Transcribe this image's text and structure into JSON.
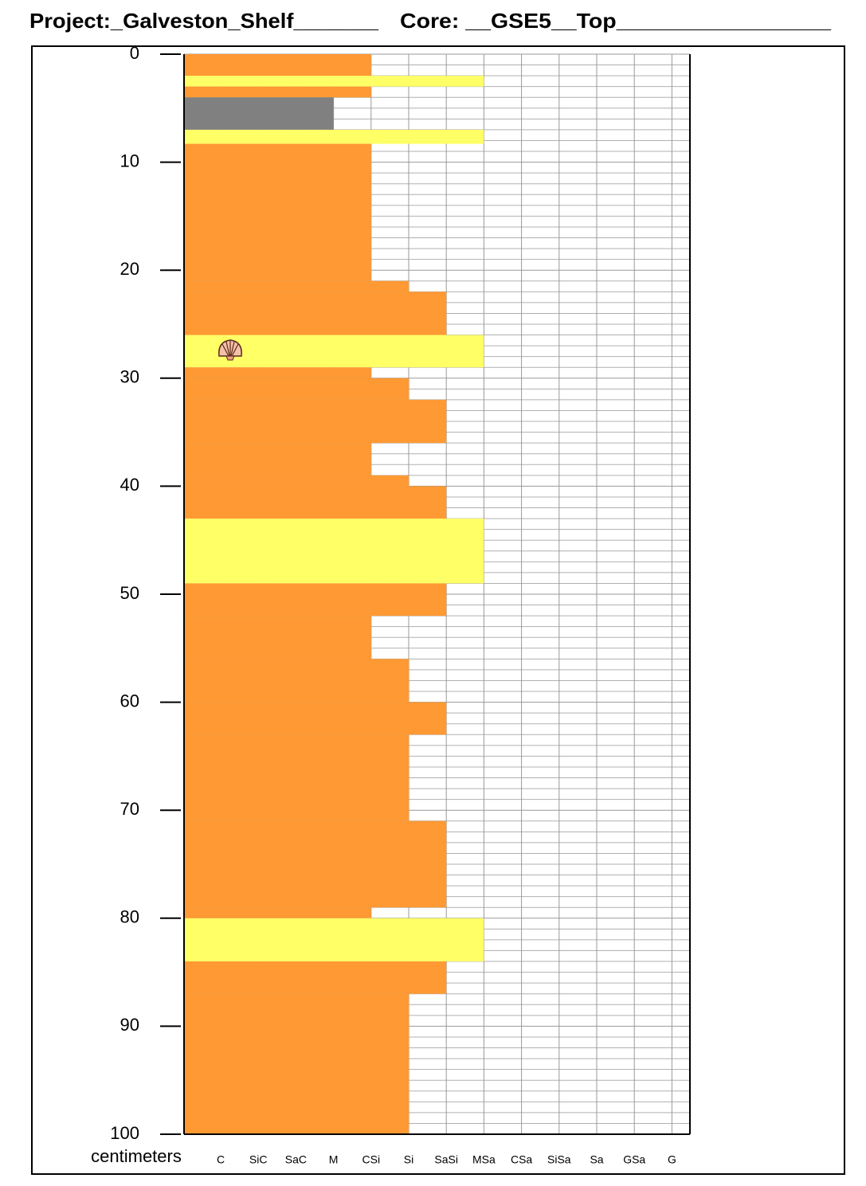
{
  "chart_data": {
    "type": "core-log",
    "title": "Project:_Galveston_Shelf_______",
    "subtitle": "Core: __GSE5__Top_________________",
    "y_label": "centimeters",
    "ylim": [
      0,
      100
    ],
    "yticks": [
      0,
      10,
      20,
      30,
      40,
      50,
      60,
      70,
      80,
      90,
      100
    ],
    "y_inverted": true,
    "grid": true,
    "categories": [
      "C",
      "SiC",
      "SaC",
      "M",
      "CSi",
      "Si",
      "SaSi",
      "MSa",
      "CSa",
      "SiSa",
      "Sa",
      "GSa",
      "G"
    ],
    "layers": [
      {
        "top": 0,
        "bottom": 2,
        "grain": "CSi",
        "color": "#ff9933"
      },
      {
        "top": 2,
        "bottom": 3,
        "grain": "MSa",
        "color": "#ffff66"
      },
      {
        "top": 3,
        "bottom": 4,
        "grain": "CSi",
        "color": "#ff9933"
      },
      {
        "top": 4,
        "bottom": 7,
        "grain": "M",
        "color": "#808080"
      },
      {
        "top": 7,
        "bottom": 8.3,
        "grain": "MSa",
        "color": "#ffff66"
      },
      {
        "top": 8.3,
        "bottom": 21,
        "grain": "CSi",
        "color": "#ff9933"
      },
      {
        "top": 21,
        "bottom": 22,
        "grain": "Si",
        "color": "#ff9933"
      },
      {
        "top": 22,
        "bottom": 26,
        "grain": "SaSi",
        "color": "#ff9933"
      },
      {
        "top": 26,
        "bottom": 29,
        "grain": "MSa",
        "color": "#ffff66"
      },
      {
        "top": 29,
        "bottom": 30,
        "grain": "CSi",
        "color": "#ff9933"
      },
      {
        "top": 30,
        "bottom": 32,
        "grain": "Si",
        "color": "#ff9933"
      },
      {
        "top": 32,
        "bottom": 36,
        "grain": "SaSi",
        "color": "#ff9933"
      },
      {
        "top": 36,
        "bottom": 39,
        "grain": "CSi",
        "color": "#ff9933"
      },
      {
        "top": 39,
        "bottom": 40,
        "grain": "Si",
        "color": "#ff9933"
      },
      {
        "top": 40,
        "bottom": 43,
        "grain": "SaSi",
        "color": "#ff9933"
      },
      {
        "top": 43,
        "bottom": 49,
        "grain": "MSa",
        "color": "#ffff66"
      },
      {
        "top": 49,
        "bottom": 52,
        "grain": "SaSi",
        "color": "#ff9933"
      },
      {
        "top": 52,
        "bottom": 56,
        "grain": "CSi",
        "color": "#ff9933"
      },
      {
        "top": 56,
        "bottom": 60,
        "grain": "Si",
        "color": "#ff9933"
      },
      {
        "top": 60,
        "bottom": 63,
        "grain": "SaSi",
        "color": "#ff9933"
      },
      {
        "top": 63,
        "bottom": 71,
        "grain": "Si",
        "color": "#ff9933"
      },
      {
        "top": 71,
        "bottom": 79,
        "grain": "SaSi",
        "color": "#ff9933"
      },
      {
        "top": 79,
        "bottom": 80,
        "grain": "CSi",
        "color": "#ff9933"
      },
      {
        "top": 80,
        "bottom": 84,
        "grain": "MSa",
        "color": "#ffff66"
      },
      {
        "top": 84,
        "bottom": 87,
        "grain": "SaSi",
        "color": "#ff9933"
      },
      {
        "top": 87,
        "bottom": 100,
        "grain": "Si",
        "color": "#ff9933"
      }
    ]
  }
}
